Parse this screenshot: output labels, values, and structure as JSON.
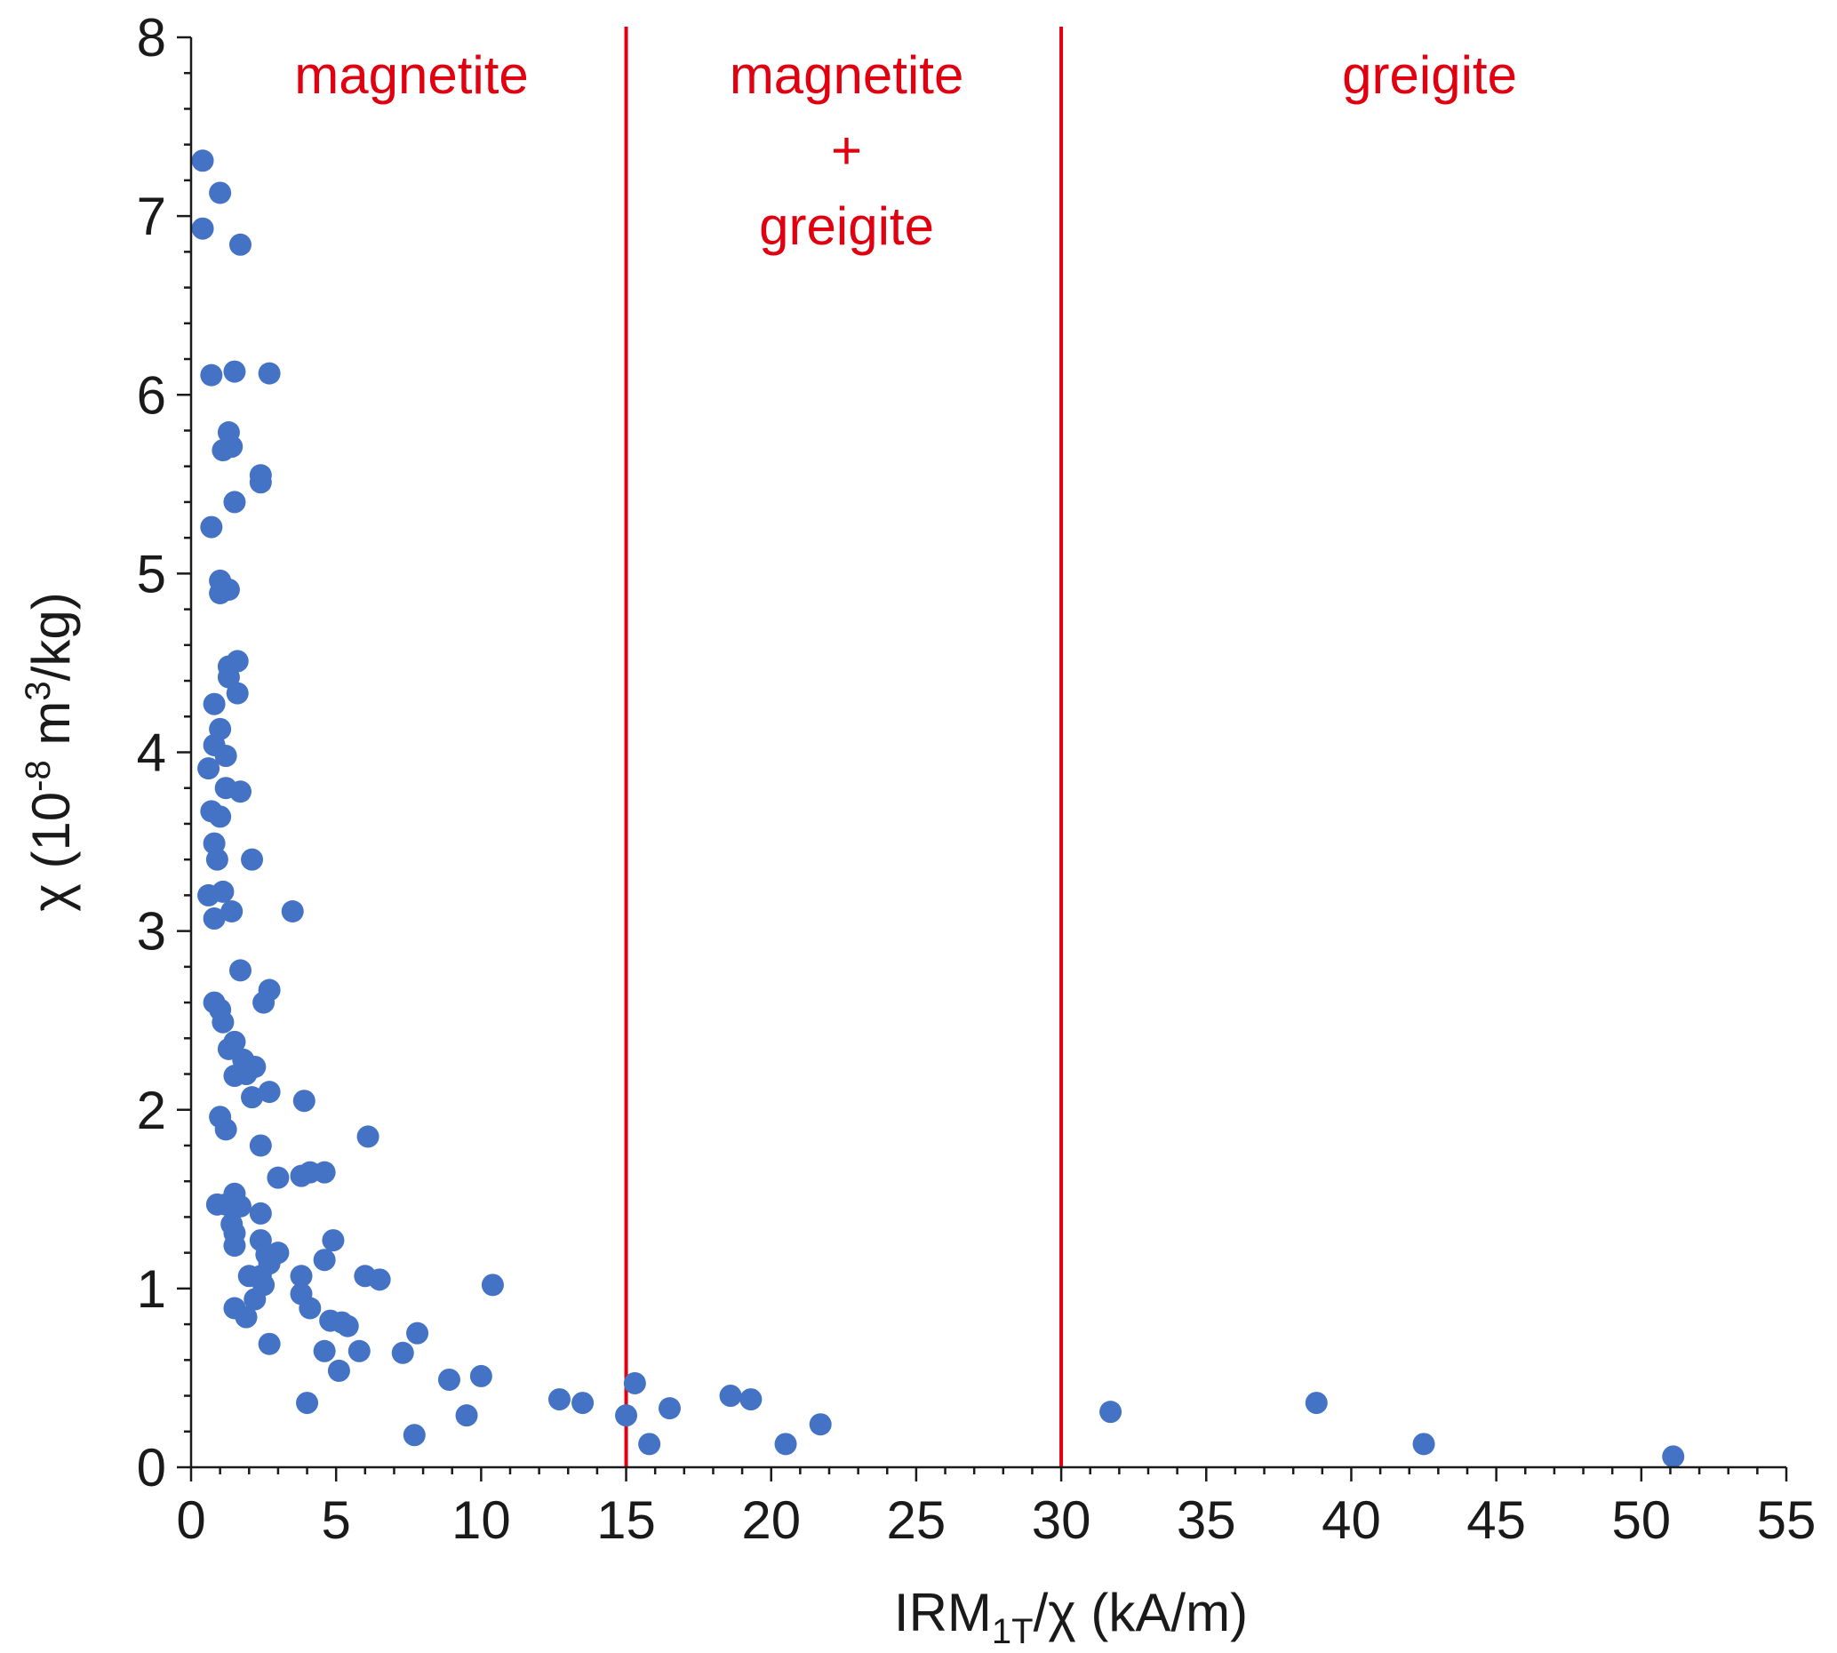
{
  "chart_data": {
    "type": "scatter",
    "xlabel": {
      "main": "IRM",
      "sub": "1T",
      "rest": "/χ (kA/m)"
    },
    "ylabel": {
      "main": "χ (10",
      "sup1": "-8",
      "mid": " m",
      "sup2": "3",
      "rest": "/kg)"
    },
    "xlim": [
      0,
      55
    ],
    "ylim": [
      0,
      8
    ],
    "xticks": [
      0,
      5,
      10,
      15,
      20,
      25,
      30,
      35,
      40,
      45,
      50,
      55
    ],
    "yticks": [
      0,
      1,
      2,
      3,
      4,
      5,
      6,
      7,
      8
    ],
    "point_color": "#4472c4",
    "divider_color": "#e00010",
    "dividers": [
      15,
      30
    ],
    "regions": [
      {
        "lines": [
          "magnetite"
        ],
        "x_center": 7.6
      },
      {
        "lines": [
          "magnetite",
          "+",
          "greigite"
        ],
        "x_center": 22.6
      },
      {
        "lines": [
          "greigite"
        ],
        "x_center": 42.7
      }
    ],
    "points": [
      [
        0.4,
        7.31
      ],
      [
        1.0,
        7.13
      ],
      [
        0.4,
        6.93
      ],
      [
        1.7,
        6.84
      ],
      [
        0.7,
        6.11
      ],
      [
        1.5,
        6.13
      ],
      [
        2.7,
        6.12
      ],
      [
        1.3,
        5.79
      ],
      [
        1.1,
        5.69
      ],
      [
        1.4,
        5.71
      ],
      [
        2.4,
        5.55
      ],
      [
        2.4,
        5.51
      ],
      [
        1.5,
        5.4
      ],
      [
        0.7,
        5.26
      ],
      [
        1.0,
        4.96
      ],
      [
        1.3,
        4.91
      ],
      [
        1.0,
        4.89
      ],
      [
        1.6,
        4.51
      ],
      [
        1.3,
        4.48
      ],
      [
        1.3,
        4.42
      ],
      [
        1.6,
        4.33
      ],
      [
        0.8,
        4.27
      ],
      [
        1.0,
        4.13
      ],
      [
        0.8,
        4.04
      ],
      [
        1.2,
        3.98
      ],
      [
        0.6,
        3.91
      ],
      [
        1.7,
        3.78
      ],
      [
        1.2,
        3.8
      ],
      [
        0.7,
        3.67
      ],
      [
        1.0,
        3.64
      ],
      [
        0.8,
        3.49
      ],
      [
        0.9,
        3.4
      ],
      [
        2.1,
        3.4
      ],
      [
        0.6,
        3.2
      ],
      [
        1.1,
        3.22
      ],
      [
        1.4,
        3.11
      ],
      [
        0.8,
        3.07
      ],
      [
        3.5,
        3.11
      ],
      [
        1.7,
        2.78
      ],
      [
        2.7,
        2.67
      ],
      [
        2.5,
        2.6
      ],
      [
        0.8,
        2.6
      ],
      [
        1.0,
        2.56
      ],
      [
        1.1,
        2.49
      ],
      [
        1.5,
        2.38
      ],
      [
        1.3,
        2.34
      ],
      [
        1.8,
        2.28
      ],
      [
        2.2,
        2.24
      ],
      [
        1.9,
        2.2
      ],
      [
        1.5,
        2.19
      ],
      [
        2.7,
        2.1
      ],
      [
        2.1,
        2.07
      ],
      [
        3.9,
        2.05
      ],
      [
        1.0,
        1.96
      ],
      [
        1.2,
        1.89
      ],
      [
        6.1,
        1.85
      ],
      [
        2.4,
        1.8
      ],
      [
        3.0,
        1.62
      ],
      [
        3.8,
        1.63
      ],
      [
        4.1,
        1.65
      ],
      [
        4.6,
        1.65
      ],
      [
        1.5,
        1.53
      ],
      [
        0.9,
        1.47
      ],
      [
        1.2,
        1.47
      ],
      [
        1.7,
        1.46
      ],
      [
        2.4,
        1.42
      ],
      [
        1.4,
        1.36
      ],
      [
        1.5,
        1.31
      ],
      [
        2.4,
        1.27
      ],
      [
        4.9,
        1.27
      ],
      [
        1.5,
        1.24
      ],
      [
        2.6,
        1.19
      ],
      [
        3.0,
        1.2
      ],
      [
        2.7,
        1.14
      ],
      [
        4.6,
        1.16
      ],
      [
        2.0,
        1.07
      ],
      [
        2.4,
        1.07
      ],
      [
        3.8,
        1.07
      ],
      [
        6.0,
        1.07
      ],
      [
        6.5,
        1.05
      ],
      [
        2.5,
        1.02
      ],
      [
        10.4,
        1.02
      ],
      [
        3.8,
        0.97
      ],
      [
        2.2,
        0.94
      ],
      [
        1.5,
        0.89
      ],
      [
        4.1,
        0.89
      ],
      [
        1.9,
        0.84
      ],
      [
        4.8,
        0.82
      ],
      [
        5.2,
        0.81
      ],
      [
        5.4,
        0.79
      ],
      [
        7.8,
        0.75
      ],
      [
        2.7,
        0.69
      ],
      [
        4.6,
        0.65
      ],
      [
        5.8,
        0.65
      ],
      [
        7.3,
        0.64
      ],
      [
        5.1,
        0.54
      ],
      [
        10.0,
        0.51
      ],
      [
        8.9,
        0.49
      ],
      [
        12.7,
        0.38
      ],
      [
        15.3,
        0.47
      ],
      [
        18.6,
        0.4
      ],
      [
        19.3,
        0.38
      ],
      [
        4.0,
        0.36
      ],
      [
        13.5,
        0.36
      ],
      [
        16.5,
        0.33
      ],
      [
        15.0,
        0.29
      ],
      [
        9.5,
        0.29
      ],
      [
        21.7,
        0.24
      ],
      [
        7.7,
        0.18
      ],
      [
        15.8,
        0.13
      ],
      [
        20.5,
        0.13
      ],
      [
        31.7,
        0.31
      ],
      [
        38.8,
        0.36
      ],
      [
        42.5,
        0.13
      ],
      [
        51.1,
        0.06
      ]
    ]
  }
}
